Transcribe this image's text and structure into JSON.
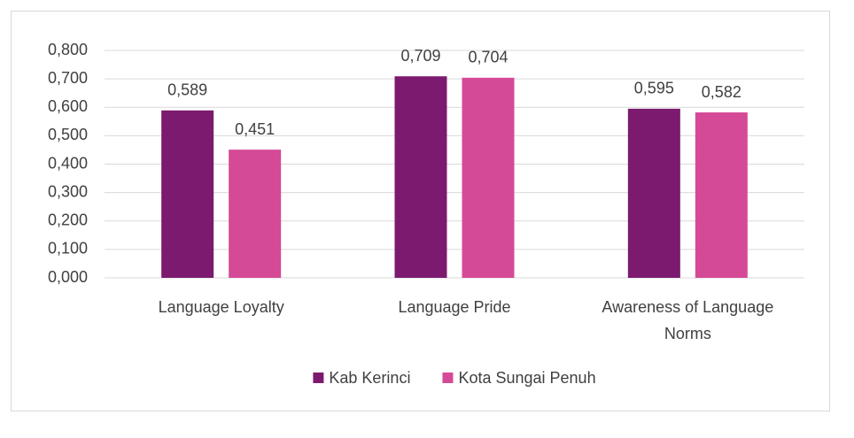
{
  "chart_data": {
    "type": "bar",
    "categories": [
      "Language Loyalty",
      "Language Pride",
      "Awareness of Language Norms"
    ],
    "series": [
      {
        "name": "Kab Kerinci",
        "color": "#7b1a6e",
        "values": [
          0.589,
          0.709,
          0.595
        ],
        "value_labels": [
          "0,589",
          "0,709",
          "0,595"
        ]
      },
      {
        "name": "Kota Sungai Penuh",
        "color": "#d54a96",
        "values": [
          0.451,
          0.704,
          0.582
        ],
        "value_labels": [
          "0,451",
          "0,704",
          "0,582"
        ]
      }
    ],
    "ylim": [
      0,
      0.8
    ],
    "yticks": [
      {
        "value": 0,
        "label": "0,000"
      },
      {
        "value": 0.1,
        "label": "0,100"
      },
      {
        "value": 0.2,
        "label": "0,200"
      },
      {
        "value": 0.3,
        "label": "0,300"
      },
      {
        "value": 0.4,
        "label": "0,400"
      },
      {
        "value": 0.5,
        "label": "0,500"
      },
      {
        "value": 0.6,
        "label": "0,600"
      },
      {
        "value": 0.7,
        "label": "0,700"
      },
      {
        "value": 0.8,
        "label": "0,800"
      }
    ],
    "grid": true,
    "legend": "bottom"
  }
}
